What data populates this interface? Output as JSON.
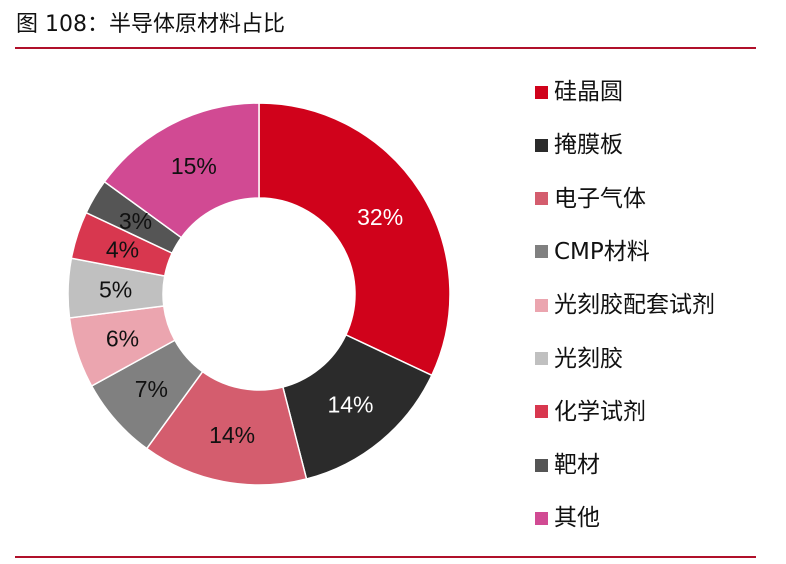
{
  "title": "图 108：半导体原材料占比",
  "chart_data": {
    "type": "pie",
    "variant": "donut",
    "legend_position": "right",
    "slices": [
      {
        "name": "硅晶圆",
        "value": 32,
        "label": "32%",
        "color": "#d0021b",
        "label_color": "#ffffff"
      },
      {
        "name": "掩膜板",
        "value": 14,
        "label": "14%",
        "color": "#2b2b2b",
        "label_color": "#ffffff"
      },
      {
        "name": "电子气体",
        "value": 14,
        "label": "14%",
        "color": "#d45d6e",
        "label_color": "#111111"
      },
      {
        "name": "CMP材料",
        "value": 7,
        "label": "7%",
        "color": "#808080",
        "label_color": "#111111"
      },
      {
        "name": "光刻胶配套试剂",
        "value": 6,
        "label": "6%",
        "color": "#eba5af",
        "label_color": "#111111"
      },
      {
        "name": "光刻胶",
        "value": 5,
        "label": "5%",
        "color": "#c0c0c0",
        "label_color": "#111111"
      },
      {
        "name": "化学试剂",
        "value": 4,
        "label": "4%",
        "color": "#d8374f",
        "label_color": "#111111"
      },
      {
        "name": "靶材",
        "value": 3,
        "label": "3%",
        "color": "#555555",
        "label_color": "#111111"
      },
      {
        "name": "其他",
        "value": 15,
        "label": "15%",
        "color": "#d14a93",
        "label_color": "#111111"
      }
    ]
  }
}
